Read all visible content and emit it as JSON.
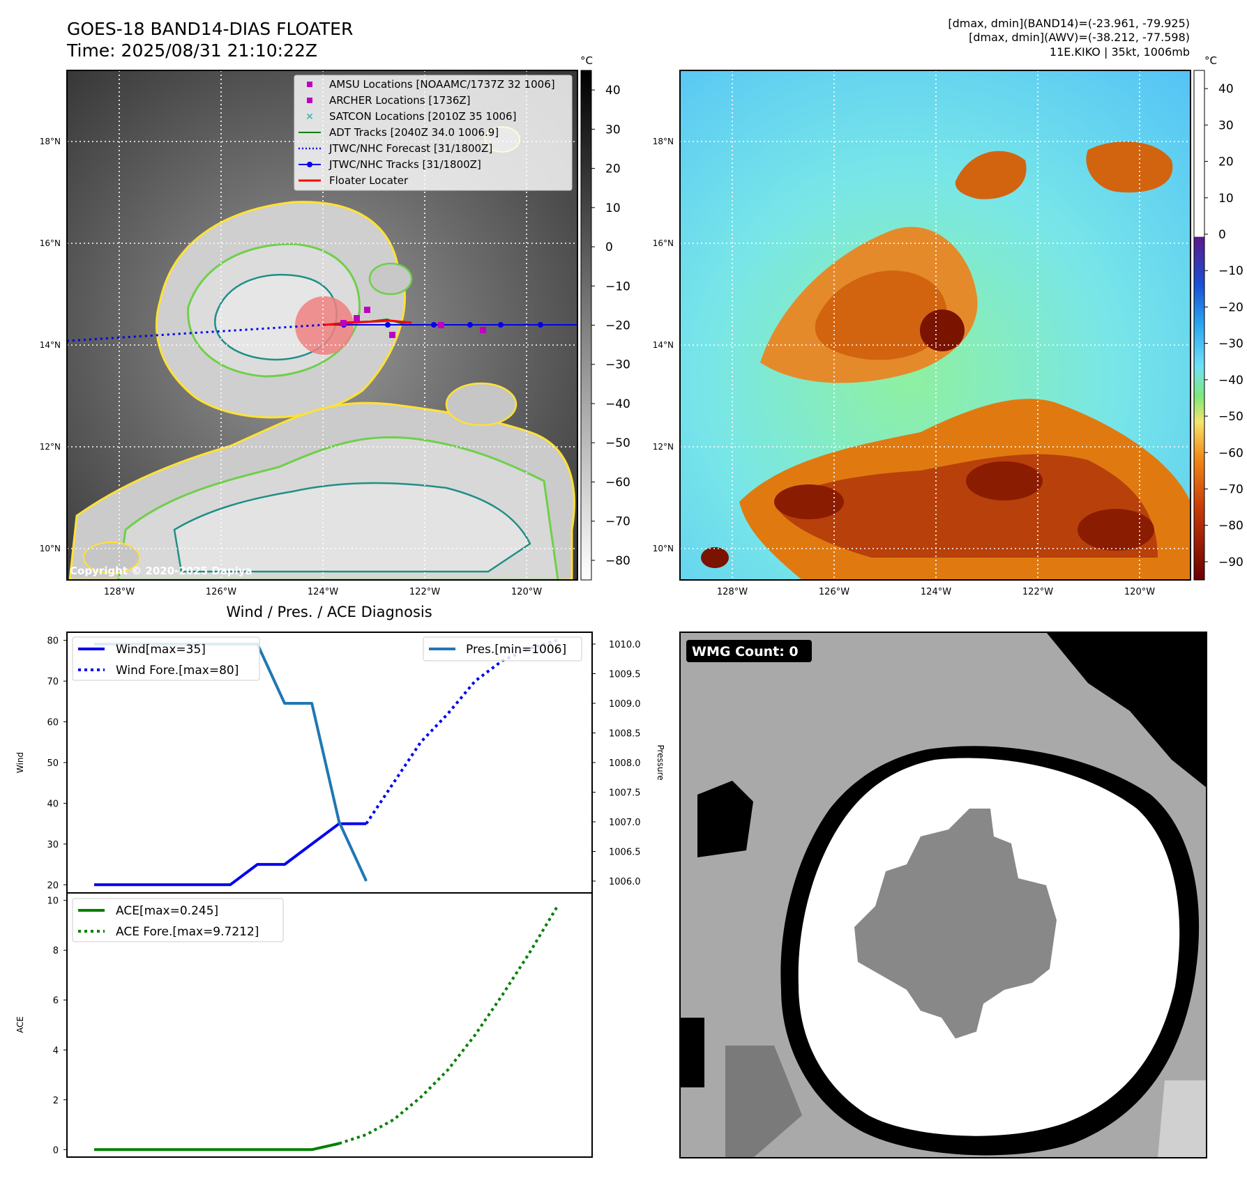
{
  "header": {
    "title_line1": "GOES-18 BAND14-DIAS FLOATER",
    "title_line2": "Time: 2025/08/31 21:10:22Z",
    "info_line1": "[dmax, dmin](BAND14)=(-23.961, -79.925)",
    "info_line2": "[dmax, dmin](AWV)=(-38.212, -77.598)",
    "info_line3": "11E.KIKO | 35kt, 1006mb"
  },
  "colors": {
    "ir_dark": "#2e2e2e",
    "ir_light": "#e2e2e2",
    "contour_yellow": "#ffe233",
    "contour_green": "#6fcf4a",
    "contour_teal": "#1f8f84",
    "awv_background": "#7ee3f5",
    "awv_orange": "#e07a10",
    "awv_dark": "#7a1300",
    "wind_color": "#0000ee",
    "pres_color": "#1f77b4",
    "ace_color": "#008000",
    "floater_color": "#ff0000"
  },
  "panel_ir": {
    "unit": "°C",
    "colorbar_ticks": [
      "40",
      "30",
      "20",
      "10",
      "0",
      "−10",
      "−20",
      "−30",
      "−40",
      "−50",
      "−60",
      "−70",
      "−80"
    ],
    "lat_labels": [
      "18°N",
      "16°N",
      "14°N",
      "12°N",
      "10°N"
    ],
    "lon_labels": [
      "128°W",
      "126°W",
      "124°W",
      "122°W",
      "120°W"
    ],
    "copyright": "Copyright © 2020-2025 Dapiya",
    "legend": [
      {
        "label": "AMSU Locations [NOAAMC/1737Z 32 1006]",
        "icon": "square-marker",
        "color": "#c000c0"
      },
      {
        "label": "ARCHER Locations [1736Z]",
        "icon": "square-marker",
        "color": "#c000c0"
      },
      {
        "label": "SATCON Locations [2010Z 35 1006]",
        "icon": "x-marker",
        "color": "#18b5b5"
      },
      {
        "label": "ADT Tracks [2040Z 34.0 1006.9]",
        "icon": "solid-line",
        "color": "#008000"
      },
      {
        "label": "JTWC/NHC Forecast [31/1800Z]",
        "icon": "dotted-line",
        "color": "#0000ee"
      },
      {
        "label": "JTWC/NHC Tracks [31/1800Z]",
        "icon": "line-dot",
        "color": "#0000ee"
      },
      {
        "label": "Floater Locater",
        "icon": "solid-line",
        "color": "#ff0000"
      }
    ]
  },
  "panel_awv": {
    "unit": "°C",
    "colorbar_ticks": [
      "40",
      "30",
      "20",
      "10",
      "0",
      "−10",
      "−20",
      "−30",
      "−40",
      "−50",
      "−60",
      "−70",
      "−80",
      "−90"
    ],
    "lat_labels": [
      "18°N",
      "16°N",
      "14°N",
      "12°N",
      "10°N"
    ],
    "lon_labels": [
      "128°W",
      "126°W",
      "124°W",
      "122°W",
      "120°W"
    ]
  },
  "panel_wmg": {
    "badge": "WMG Count: 0"
  },
  "chart_data": [
    {
      "type": "line",
      "title": "Wind / Pres. / ACE Diagnosis",
      "ylabel": "Wind",
      "ylabel_right": "Pressure",
      "ylim": [
        18,
        82
      ],
      "ylim_right": [
        1005.8,
        1010.2
      ],
      "yticks": [
        20,
        30,
        40,
        50,
        60,
        70,
        80
      ],
      "yticks_right": [
        "1010.0",
        "1009.5",
        "1009.0",
        "1008.5",
        "1008.0",
        "1007.5",
        "1007.0",
        "1006.5",
        "1006.0"
      ],
      "x": [
        0,
        1,
        2,
        3,
        4,
        5,
        6,
        7,
        8,
        9,
        10,
        11,
        12,
        13,
        14,
        15,
        16,
        17
      ],
      "series": [
        {
          "name": "Wind[max=35]",
          "style": "solid",
          "values": [
            20,
            20,
            20,
            20,
            20,
            20,
            25,
            25,
            30,
            35,
            35,
            null,
            null,
            null,
            null,
            null,
            null,
            null
          ]
        },
        {
          "name": "Wind Fore.[max=80]",
          "style": "dotted",
          "values": [
            null,
            null,
            null,
            null,
            null,
            null,
            null,
            null,
            null,
            null,
            35,
            45,
            55,
            62,
            70,
            75,
            78,
            80
          ]
        },
        {
          "name": "Pres.[min=1006]",
          "style": "solid",
          "axis": "right",
          "values": [
            1010,
            1010,
            1010,
            1010,
            1010,
            1010,
            1010,
            1009,
            1009,
            1007,
            1006,
            null,
            null,
            null,
            null,
            null,
            null,
            null
          ]
        }
      ],
      "legend_left": [
        "Wind[max=35]",
        "Wind Fore.[max=80]"
      ],
      "legend_right": [
        "Pres.[min=1006]"
      ]
    },
    {
      "type": "line",
      "ylabel": "ACE",
      "ylim": [
        -0.3,
        10.3
      ],
      "yticks": [
        0,
        2,
        4,
        6,
        8,
        10
      ],
      "x": [
        0,
        1,
        2,
        3,
        4,
        5,
        6,
        7,
        8,
        9,
        10,
        11,
        12,
        13,
        14,
        15,
        16,
        17
      ],
      "series": [
        {
          "name": "ACE[max=0.245]",
          "style": "solid",
          "values": [
            0,
            0,
            0,
            0,
            0,
            0,
            0,
            0,
            0,
            0.245,
            null,
            null,
            null,
            null,
            null,
            null,
            null,
            null
          ]
        },
        {
          "name": "ACE Fore.[max=9.7212]",
          "style": "dotted",
          "values": [
            null,
            null,
            null,
            null,
            null,
            null,
            null,
            null,
            null,
            0.245,
            0.6,
            1.2,
            2.1,
            3.2,
            4.6,
            6.2,
            7.9,
            9.7212
          ]
        }
      ],
      "legend": [
        "ACE[max=0.245]",
        "ACE Fore.[max=9.7212]"
      ]
    }
  ]
}
